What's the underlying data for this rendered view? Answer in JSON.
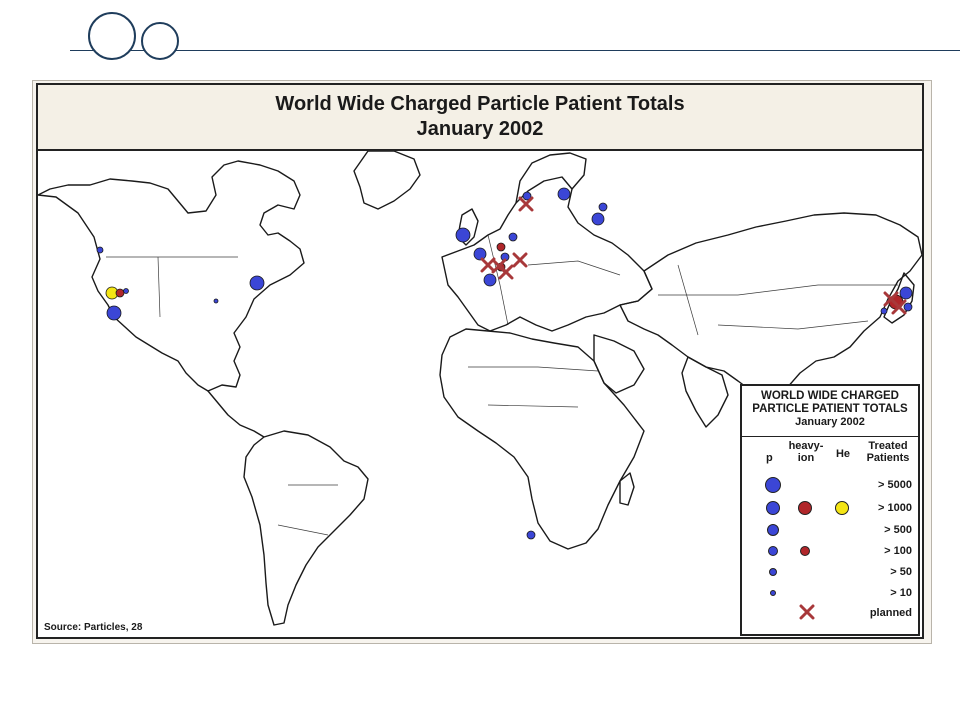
{
  "map": {
    "title_line1": "World Wide Charged Particle Patient Totals",
    "title_line2": "January 2002",
    "source": "Source: Particles, 28"
  },
  "legend": {
    "title_line1": "WORLD WIDE CHARGED",
    "title_line2": "PARTICLE PATIENT TOTALS",
    "title_line3": "January 2002",
    "col_p": "p",
    "col_heavy_line1": "heavy-",
    "col_heavy_line2": "ion",
    "col_he": "He",
    "col_treated_line1": "Treated",
    "col_treated_line2": "Patients",
    "rows": [
      {
        "label": "> 5000"
      },
      {
        "label": "> 1000"
      },
      {
        "label": "> 500"
      },
      {
        "label": "> 100"
      },
      {
        "label": "> 50"
      },
      {
        "label": "> 10"
      },
      {
        "label": "planned"
      }
    ]
  },
  "colors": {
    "proton": "#3b46d6",
    "heavy_ion": "#b0262a",
    "helium": "#f4e515",
    "planned": "#a8383a",
    "border": "#1a1a1a"
  }
}
